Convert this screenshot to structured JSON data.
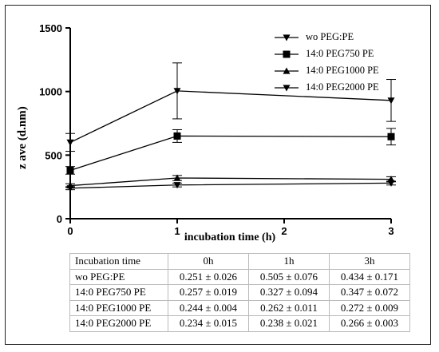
{
  "chart_data": {
    "type": "line",
    "ylabel": "z ave (d.nm)",
    "xlabel": "incubation time (h)",
    "x": [
      0,
      1,
      3
    ],
    "xlim": [
      0,
      3
    ],
    "ylim": [
      0,
      1500
    ],
    "x_ticks": [
      "0",
      "1",
      "2",
      "3"
    ],
    "y_ticks": [
      "0",
      "500",
      "1000",
      "1500"
    ],
    "legend_position": "top-right",
    "grid": false,
    "series": [
      {
        "name": "wo PEG:PE",
        "marker": "triangle-down",
        "values": [
          600,
          1005,
          930
        ],
        "errors": [
          70,
          220,
          165
        ]
      },
      {
        "name": "14:0 PEG750 PE",
        "marker": "square",
        "values": [
          380,
          650,
          645
        ],
        "errors": [
          30,
          50,
          65
        ]
      },
      {
        "name": "14:0 PEG1000 PE",
        "marker": "triangle-up",
        "values": [
          260,
          320,
          310
        ],
        "errors": [
          15,
          20,
          20
        ]
      },
      {
        "name": "14:0 PEG2000 PE",
        "marker": "triangle-down",
        "values": [
          240,
          265,
          280
        ],
        "errors": [
          12,
          15,
          15
        ]
      }
    ]
  },
  "table": {
    "headers": [
      "Incubation time",
      "0h",
      "1h",
      "3h"
    ],
    "rows": [
      [
        "wo PEG:PE",
        "0.251 ± 0.026",
        "0.505 ± 0.076",
        "0.434 ± 0.171"
      ],
      [
        "14:0 PEG750 PE",
        "0.257 ± 0.019",
        "0.327 ± 0.094",
        "0.347 ± 0.072"
      ],
      [
        "14:0 PEG1000 PE",
        "0.244 ± 0.004",
        "0.262 ± 0.011",
        "0.272 ± 0.009"
      ],
      [
        "14:0 PEG2000 PE",
        "0.234 ± 0.015",
        "0.238 ± 0.021",
        "0.266 ± 0.003"
      ]
    ]
  }
}
